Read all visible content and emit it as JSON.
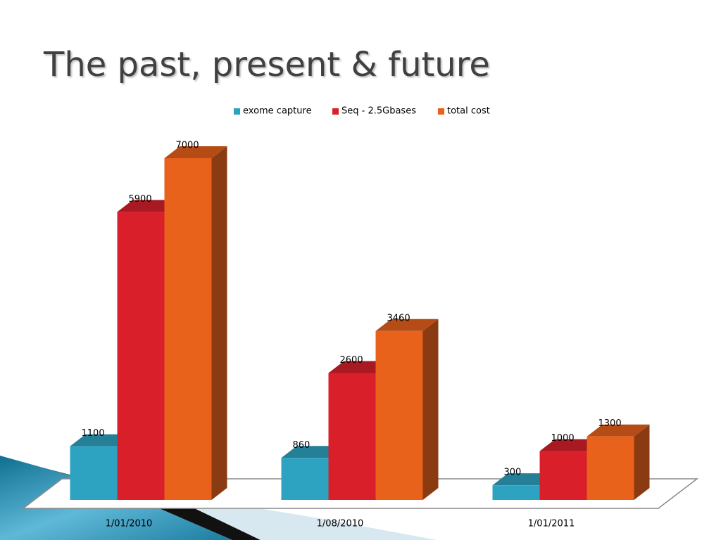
{
  "chart_data": {
    "type": "bar3d",
    "title": "The past, present & future",
    "categories": [
      "1/01/2010",
      "1/08/2010",
      "1/01/2011"
    ],
    "series": [
      {
        "name": "exome capture",
        "color": "#2ea3c1",
        "values": [
          1100,
          860,
          300
        ]
      },
      {
        "name": "Seq - 2.5Gbases",
        "color": "#d9202a",
        "values": [
          5900,
          2600,
          1000
        ]
      },
      {
        "name": "total cost",
        "color": "#e8621c",
        "values": [
          7000,
          3460,
          1300
        ]
      }
    ],
    "legend": "top"
  }
}
